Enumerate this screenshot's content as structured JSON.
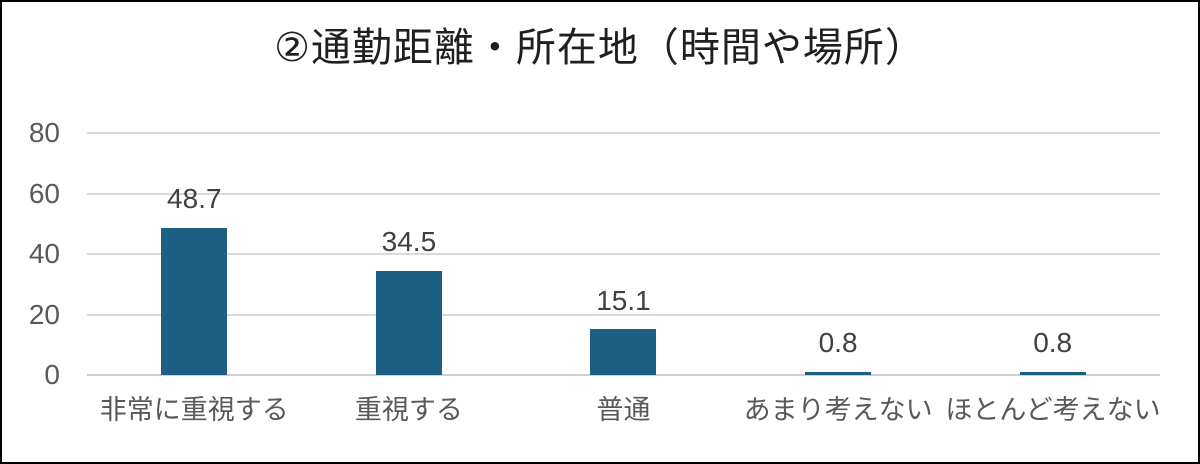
{
  "chart_data": {
    "type": "bar",
    "title": "②通勤距離・所在地（時間や場所）",
    "categories": [
      "非常に重視する",
      "重視する",
      "普通",
      "あまり考えない",
      "ほとんど考えない"
    ],
    "values": [
      48.7,
      34.5,
      15.1,
      0.8,
      0.8
    ],
    "data_labels": [
      "48.7",
      "34.5",
      "15.1",
      "0.8",
      "0.8"
    ],
    "xlabel": "",
    "ylabel": "",
    "ylim": [
      0,
      80
    ],
    "yticks": [
      0,
      20,
      40,
      60,
      80
    ],
    "grid": "horizontal-on",
    "legend": "none",
    "colors": {
      "bar": "#1d5f82",
      "gridline": "#d9d9d9",
      "axis_labels": "#595959",
      "data_labels": "#404040",
      "title": "#1f1f1f",
      "frame_border": "#000000",
      "background": "#ffffff"
    }
  }
}
